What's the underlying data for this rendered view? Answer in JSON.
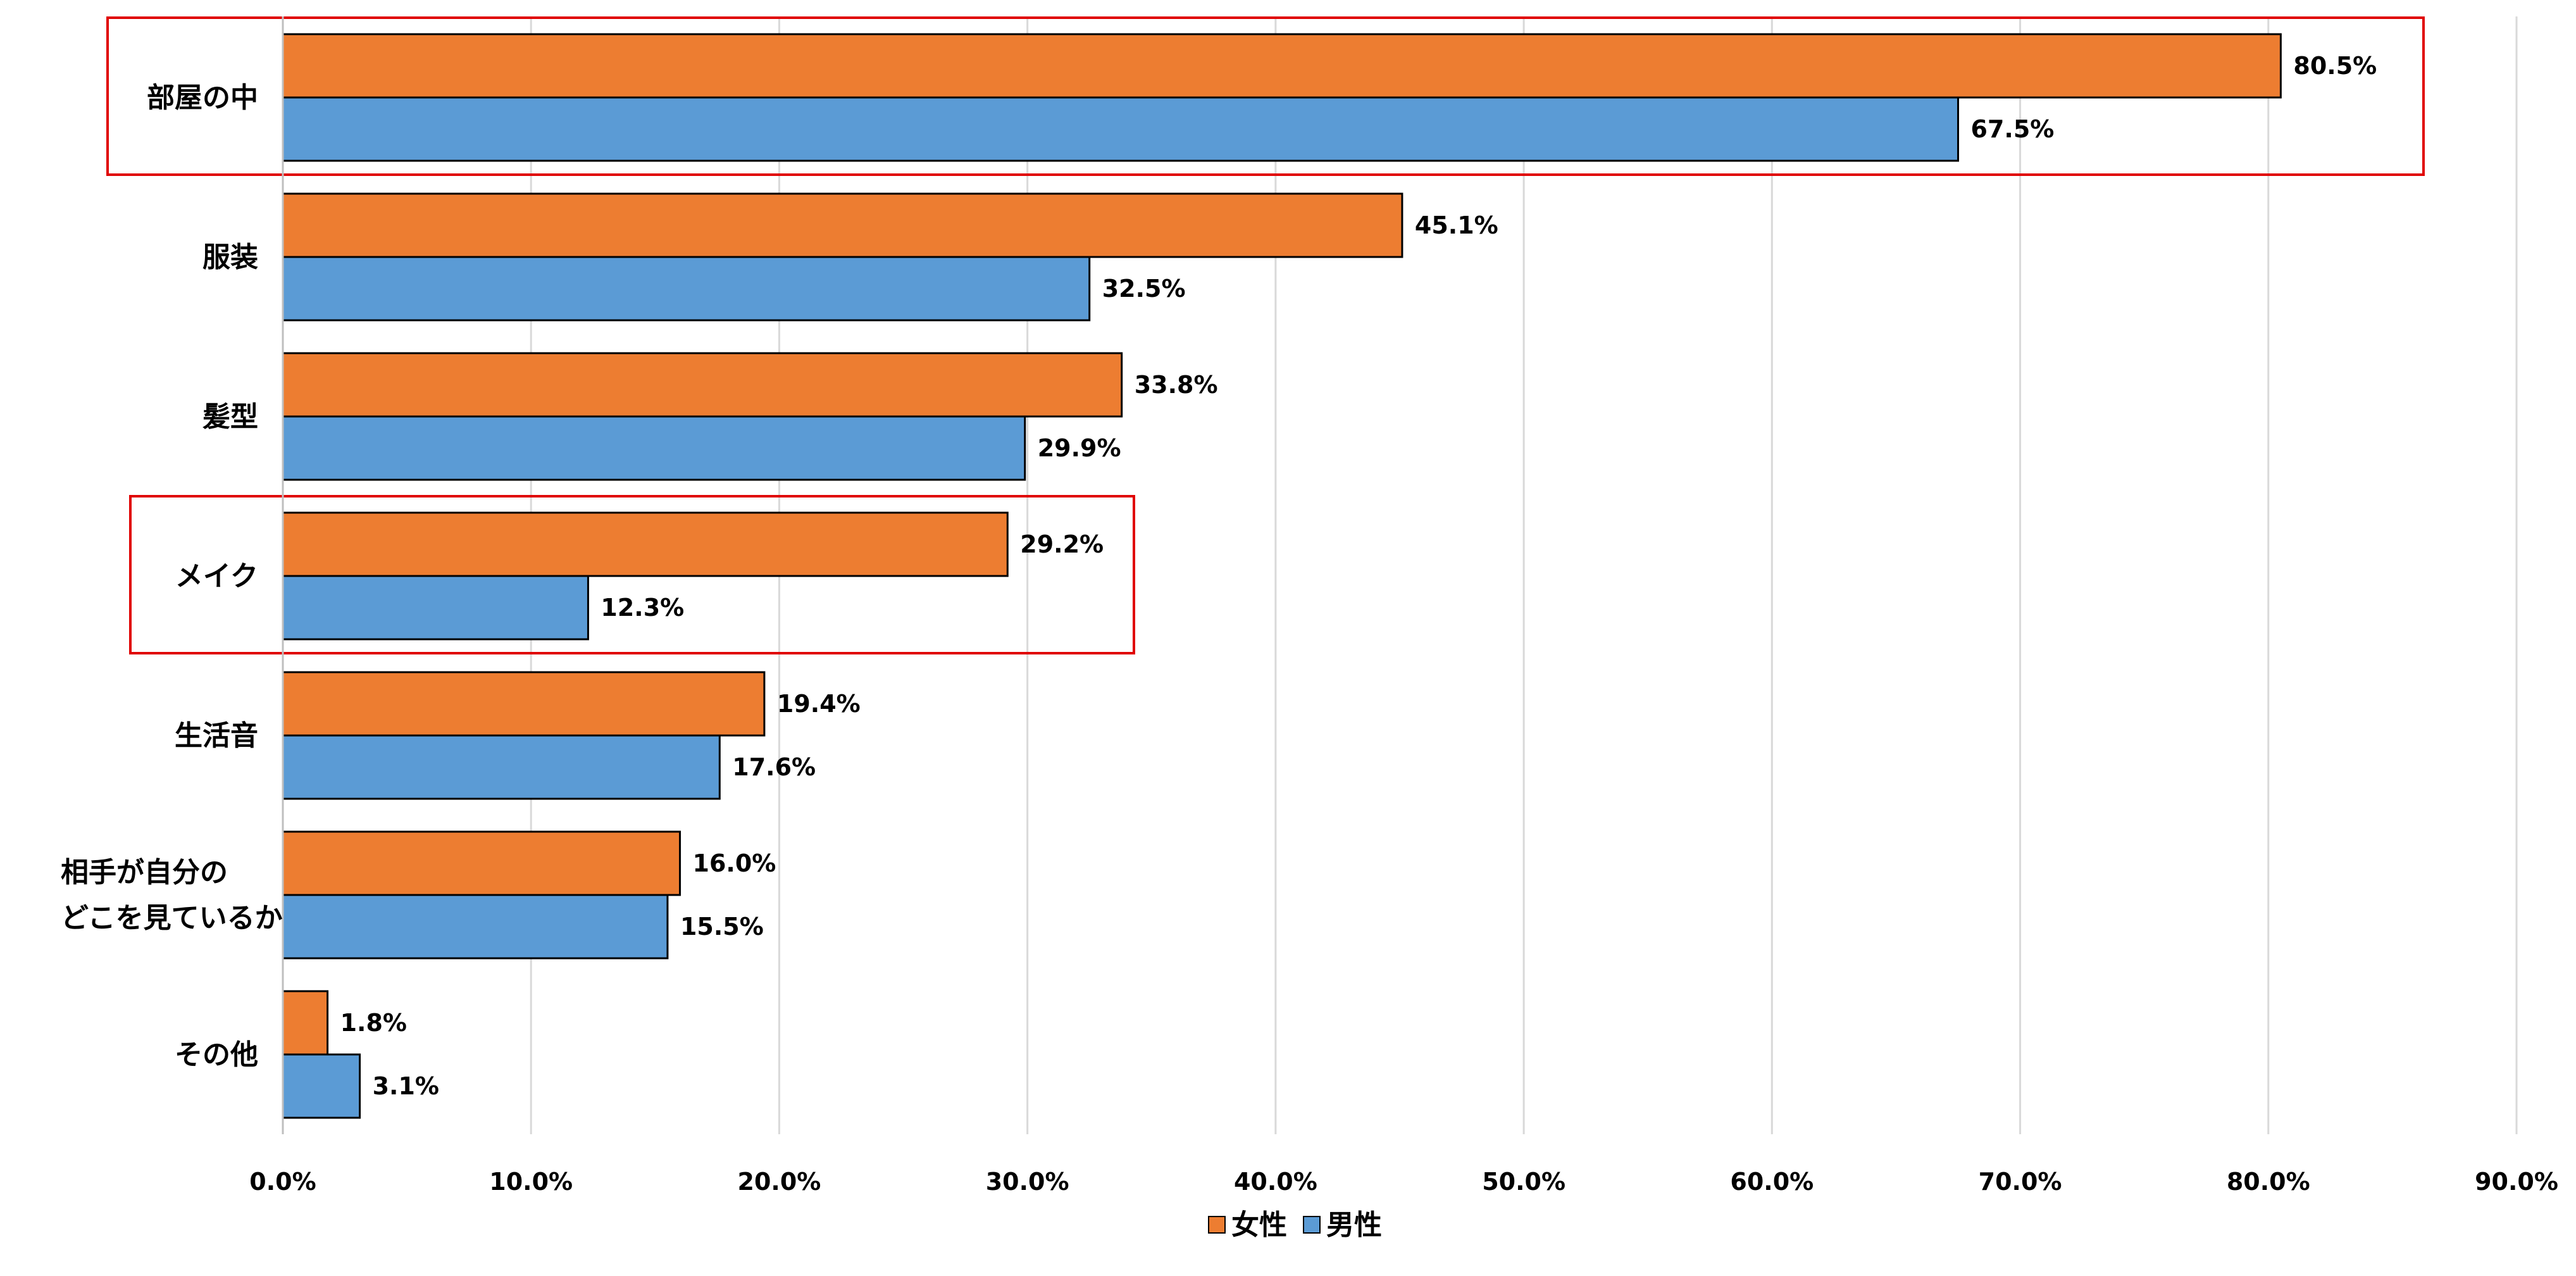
{
  "chart_data": {
    "type": "bar",
    "orientation": "horizontal",
    "categories": [
      [
        "部屋の中"
      ],
      [
        "服装"
      ],
      [
        "髪型"
      ],
      [
        "メイク"
      ],
      [
        "生活音"
      ],
      [
        "相手が自分の",
        "どこを見ているか"
      ],
      [
        "その他"
      ]
    ],
    "series": [
      {
        "name": "女性",
        "color": "#ED7D31",
        "values": [
          80.5,
          45.1,
          33.8,
          29.2,
          19.4,
          16.0,
          1.8
        ]
      },
      {
        "name": "男性",
        "color": "#5B9BD5",
        "values": [
          67.5,
          32.5,
          29.9,
          12.3,
          17.6,
          15.5,
          3.1
        ]
      }
    ],
    "xlim": [
      0,
      90
    ],
    "xticks": [
      0,
      10,
      20,
      30,
      40,
      50,
      60,
      70,
      80,
      90
    ],
    "tick_format": "percent_1dp",
    "grid": "vertical",
    "legend": "bottom-center",
    "highlight_boxes": {
      "color": "#E00000",
      "categories": [
        "部屋の中",
        "メイク"
      ]
    }
  }
}
